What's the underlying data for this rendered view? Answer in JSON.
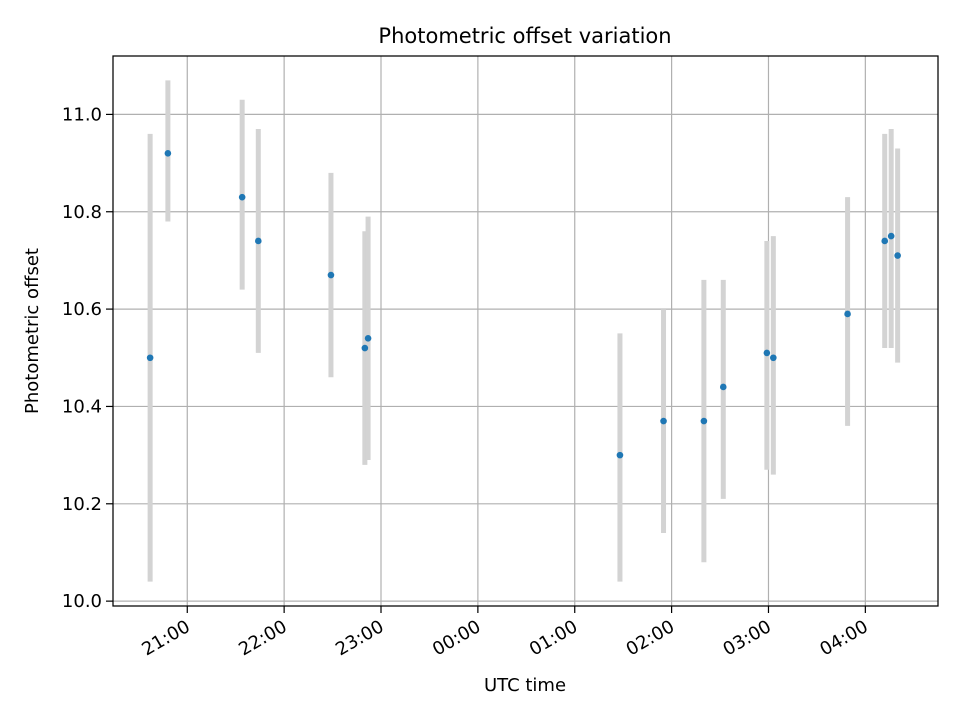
{
  "chart_data": {
    "type": "scatter",
    "title": "Photometric offset variation",
    "xlabel": "UTC time",
    "ylabel": "Photometric offset",
    "x_ticks": [
      "21:00",
      "22:00",
      "23:00",
      "00:00",
      "01:00",
      "02:00",
      "03:00",
      "04:00"
    ],
    "y_ticks": [
      "10.0",
      "10.2",
      "10.4",
      "10.6",
      "10.8",
      "11.0"
    ],
    "xlim": [
      "20:14",
      "04:45"
    ],
    "ylim": [
      9.99,
      11.12
    ],
    "grid": true,
    "points": [
      {
        "x": "20:37",
        "y": 10.5,
        "ymin": 10.04,
        "ymax": 10.96
      },
      {
        "x": "20:48",
        "y": 10.92,
        "ymin": 10.78,
        "ymax": 11.07
      },
      {
        "x": "21:34",
        "y": 10.83,
        "ymin": 10.64,
        "ymax": 11.03
      },
      {
        "x": "21:44",
        "y": 10.74,
        "ymin": 10.51,
        "ymax": 10.97
      },
      {
        "x": "22:29",
        "y": 10.67,
        "ymin": 10.46,
        "ymax": 10.88
      },
      {
        "x": "22:50",
        "y": 10.52,
        "ymin": 10.28,
        "ymax": 10.76
      },
      {
        "x": "22:52",
        "y": 10.54,
        "ymin": 10.29,
        "ymax": 10.79
      },
      {
        "x": "01:28",
        "y": 10.3,
        "ymin": 10.04,
        "ymax": 10.55
      },
      {
        "x": "01:55",
        "y": 10.37,
        "ymin": 10.14,
        "ymax": 10.6
      },
      {
        "x": "02:20",
        "y": 10.37,
        "ymin": 10.08,
        "ymax": 10.66
      },
      {
        "x": "02:32",
        "y": 10.44,
        "ymin": 10.21,
        "ymax": 10.66
      },
      {
        "x": "02:59",
        "y": 10.51,
        "ymin": 10.27,
        "ymax": 10.74
      },
      {
        "x": "03:03",
        "y": 10.5,
        "ymin": 10.26,
        "ymax": 10.75
      },
      {
        "x": "03:49",
        "y": 10.59,
        "ymin": 10.36,
        "ymax": 10.83
      },
      {
        "x": "04:12",
        "y": 10.74,
        "ymin": 10.52,
        "ymax": 10.96
      },
      {
        "x": "04:16",
        "y": 10.75,
        "ymin": 10.52,
        "ymax": 10.97
      },
      {
        "x": "04:20",
        "y": 10.71,
        "ymin": 10.49,
        "ymax": 10.93
      }
    ],
    "colors": {
      "point": "#1f77b4",
      "errorbar": "#d3d3d3",
      "grid": "#b0b0b0",
      "frame": "#000000"
    }
  }
}
